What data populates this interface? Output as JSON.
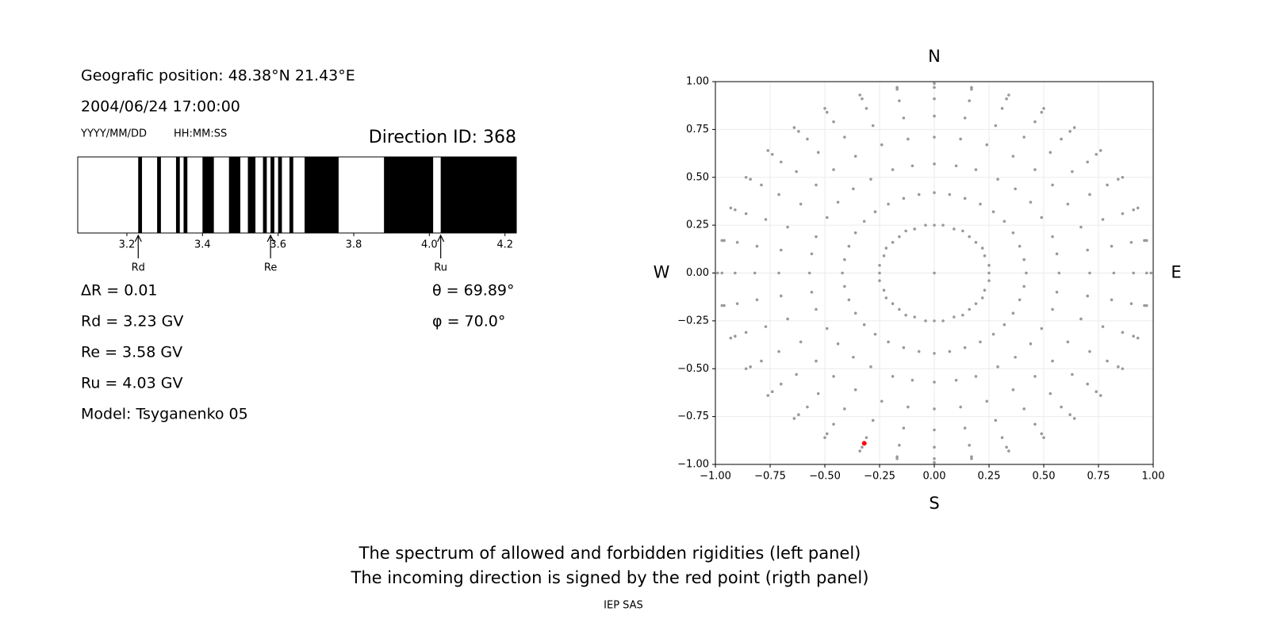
{
  "header": {
    "position": "Geografic position: 48.38°N 21.43°E",
    "datetime": "2004/06/24 17:00:00",
    "date_format": "YYYY/MM/DD",
    "time_format": "HH:MM:SS",
    "direction_id": "Direction ID: 368"
  },
  "parameters": {
    "delta_r": "ΔR = 0.01",
    "rd": "Rd = 3.23 GV",
    "re": "Re = 3.58 GV",
    "ru": "Ru = 4.03 GV",
    "model": "Model: Tsyganenko 05",
    "theta": "θ = 69.89°",
    "phi": "φ = 70.0°"
  },
  "chart_data": [
    {
      "type": "spectrum",
      "xlim": [
        3.07,
        4.23
      ],
      "xticks": [
        3.2,
        3.4,
        3.6,
        3.8,
        {
          "value": 4,
          "label": "4.0"
        },
        4.2
      ],
      "color": "#000000",
      "bands": [
        [
          3.23,
          3.24
        ],
        [
          3.28,
          3.29
        ],
        [
          3.33,
          3.34
        ],
        [
          3.35,
          3.36
        ],
        [
          3.4,
          3.43
        ],
        [
          3.47,
          3.5
        ],
        [
          3.52,
          3.54
        ],
        [
          3.56,
          3.57
        ],
        [
          3.58,
          3.59
        ],
        [
          3.6,
          3.61
        ],
        [
          3.63,
          3.64
        ],
        [
          3.67,
          3.76
        ],
        [
          3.88,
          4.01
        ],
        [
          4.03,
          4.23
        ]
      ],
      "markers": [
        {
          "label": "Rd",
          "value": 3.23
        },
        {
          "label": "Re",
          "value": 3.58
        },
        {
          "label": "Ru",
          "value": 4.03
        }
      ]
    },
    {
      "type": "scatter",
      "xlim": [
        -1,
        1
      ],
      "ylim": [
        -1,
        1
      ],
      "grid": true,
      "xticks": [
        {
          "value": -1,
          "label": "−1.00"
        },
        {
          "value": -0.75,
          "label": "−0.75"
        },
        {
          "value": -0.5,
          "label": "−0.50"
        },
        {
          "value": -0.25,
          "label": "−0.25"
        },
        {
          "value": 0,
          "label": "0.00"
        },
        {
          "value": 0.25,
          "label": "0.25"
        },
        {
          "value": 0.5,
          "label": "0.50"
        },
        {
          "value": 0.75,
          "label": "0.75"
        },
        {
          "value": 1,
          "label": "1.00"
        }
      ],
      "yticks": [
        {
          "value": -1,
          "label": "−1.00"
        },
        {
          "value": -0.75,
          "label": "−0.75"
        },
        {
          "value": -0.5,
          "label": "−0.50"
        },
        {
          "value": -0.25,
          "label": "−0.25"
        },
        {
          "value": 0,
          "label": "0.00"
        },
        {
          "value": 0.25,
          "label": "0.25"
        },
        {
          "value": 0.5,
          "label": "0.50"
        },
        {
          "value": 0.75,
          "label": "0.75"
        },
        {
          "value": 1,
          "label": "1.00"
        }
      ],
      "compass": {
        "north": "N",
        "south": "S",
        "west": "W",
        "east": "E"
      },
      "series": [
        {
          "color": "#999999",
          "x": [
            0,
            0,
            0.04,
            0.09,
            0.13,
            0.16,
            0.19,
            0.22,
            0.23,
            0.25,
            0.25,
            0.25,
            0.23,
            0.22,
            0.19,
            0.16,
            0.13,
            0.09,
            0.04,
            0,
            -0.04,
            -0.09,
            -0.13,
            -0.16,
            -0.19,
            -0.22,
            -0.23,
            -0.25,
            -0.25,
            -0.25,
            -0.23,
            -0.22,
            -0.19,
            -0.16,
            -0.13,
            -0.09,
            -0.04,
            0,
            0.07,
            0.14,
            0.21,
            0.27,
            0.32,
            0.36,
            0.39,
            0.41,
            0.42,
            0.41,
            0.39,
            0.36,
            0.32,
            0.27,
            0.21,
            0.14,
            0.07,
            0,
            -0.07,
            -0.14,
            -0.21,
            -0.27,
            -0.32,
            -0.36,
            -0.39,
            -0.41,
            -0.42,
            -0.41,
            -0.39,
            -0.36,
            -0.32,
            -0.27,
            -0.21,
            -0.14,
            -0.07,
            0,
            0.1,
            0.19,
            0.29,
            0.37,
            0.44,
            0.49,
            0.54,
            0.56,
            0.57,
            0.56,
            0.54,
            0.49,
            0.44,
            0.37,
            0.29,
            0.19,
            0.1,
            0,
            -0.1,
            -0.19,
            -0.29,
            -0.37,
            -0.44,
            -0.49,
            -0.54,
            -0.56,
            -0.57,
            -0.56,
            -0.54,
            -0.49,
            -0.44,
            -0.37,
            -0.29,
            -0.19,
            -0.1,
            0,
            0.12,
            0.24,
            0.36,
            0.46,
            0.54,
            0.61,
            0.67,
            0.7,
            0.71,
            0.7,
            0.67,
            0.61,
            0.54,
            0.46,
            0.36,
            0.24,
            0.12,
            0,
            -0.12,
            -0.24,
            -0.36,
            -0.46,
            -0.54,
            -0.61,
            -0.67,
            -0.7,
            -0.71,
            -0.7,
            -0.67,
            -0.61,
            -0.54,
            -0.46,
            -0.36,
            -0.24,
            -0.12,
            0,
            0.14,
            0.28,
            0.41,
            0.53,
            0.63,
            0.71,
            0.77,
            0.81,
            0.82,
            0.81,
            0.77,
            0.71,
            0.63,
            0.53,
            0.41,
            0.28,
            0.14,
            0,
            -0.14,
            -0.28,
            -0.41,
            -0.53,
            -0.63,
            -0.71,
            -0.77,
            -0.81,
            -0.82,
            -0.81,
            -0.77,
            -0.71,
            -0.63,
            -0.53,
            -0.41,
            -0.28,
            -0.14,
            0,
            0.16,
            0.31,
            0.46,
            0.58,
            0.7,
            0.79,
            0.86,
            0.9,
            0.91,
            0.9,
            0.86,
            0.79,
            0.7,
            0.58,
            0.46,
            0.31,
            0.16,
            0,
            -0.16,
            -0.31,
            -0.46,
            -0.58,
            -0.7,
            -0.79,
            -0.86,
            -0.9,
            -0.91,
            -0.9,
            -0.86,
            -0.79,
            -0.7,
            -0.58,
            -0.46,
            -0.31,
            -0.16,
            0,
            0.17,
            0.33,
            0.49,
            0.62,
            0.74,
            0.84,
            0.91,
            0.96,
            0.97,
            0.96,
            0.91,
            0.84,
            0.74,
            0.62,
            0.49,
            0.33,
            0.17,
            0,
            -0.17,
            -0.33,
            -0.49,
            -0.62,
            -0.74,
            -0.84,
            -0.91,
            -0.96,
            -0.97,
            -0.96,
            -0.91,
            -0.84,
            -0.74,
            -0.62,
            -0.49,
            -0.33,
            -0.17,
            0,
            0.17,
            0.34,
            0.5,
            0.64,
            0.76,
            0.86,
            0.93,
            0.97,
            0.99,
            0.97,
            0.93,
            0.86,
            0.76,
            0.64,
            0.5,
            0.34,
            0.17,
            0,
            -0.17,
            -0.34,
            -0.5,
            -0.64,
            -0.76,
            -0.86,
            -0.93,
            -0.97,
            -0.99,
            -0.97,
            -0.93,
            -0.86,
            -0.76,
            -0.64,
            -0.5,
            -0.34,
            -0.17
          ],
          "y": [
            0,
            0.25,
            0.25,
            0.23,
            0.22,
            0.19,
            0.16,
            0.13,
            0.09,
            0.04,
            0,
            -0.04,
            -0.09,
            -0.13,
            -0.16,
            -0.19,
            -0.22,
            -0.23,
            -0.25,
            -0.25,
            -0.25,
            -0.23,
            -0.22,
            -0.19,
            -0.16,
            -0.13,
            -0.09,
            -0.04,
            0,
            0.04,
            0.09,
            0.13,
            0.16,
            0.19,
            0.22,
            0.23,
            0.25,
            0.42,
            0.41,
            0.39,
            0.36,
            0.32,
            0.27,
            0.21,
            0.14,
            0.07,
            0,
            -0.07,
            -0.14,
            -0.21,
            -0.27,
            -0.32,
            -0.36,
            -0.39,
            -0.41,
            -0.42,
            -0.41,
            -0.39,
            -0.36,
            -0.32,
            -0.27,
            -0.21,
            -0.14,
            -0.07,
            0,
            0.07,
            0.14,
            0.21,
            0.27,
            0.32,
            0.36,
            0.39,
            0.41,
            0.57,
            0.56,
            0.54,
            0.49,
            0.44,
            0.37,
            0.29,
            0.19,
            0.1,
            0,
            -0.1,
            -0.19,
            -0.29,
            -0.37,
            -0.44,
            -0.49,
            -0.54,
            -0.56,
            -0.57,
            -0.56,
            -0.54,
            -0.49,
            -0.44,
            -0.37,
            -0.29,
            -0.19,
            -0.1,
            0,
            0.1,
            0.19,
            0.29,
            0.37,
            0.44,
            0.49,
            0.54,
            0.56,
            0.71,
            0.7,
            0.67,
            0.61,
            0.54,
            0.46,
            0.36,
            0.24,
            0.12,
            0,
            -0.12,
            -0.24,
            -0.36,
            -0.46,
            -0.54,
            -0.61,
            -0.67,
            -0.7,
            -0.71,
            -0.7,
            -0.67,
            -0.61,
            -0.54,
            -0.46,
            -0.36,
            -0.24,
            -0.12,
            0,
            0.12,
            0.24,
            0.36,
            0.46,
            0.54,
            0.61,
            0.67,
            0.7,
            0.82,
            0.81,
            0.77,
            0.71,
            0.63,
            0.53,
            0.41,
            0.28,
            0.14,
            0,
            -0.14,
            -0.28,
            -0.41,
            -0.53,
            -0.63,
            -0.71,
            -0.77,
            -0.81,
            -0.82,
            -0.81,
            -0.77,
            -0.71,
            -0.63,
            -0.53,
            -0.41,
            -0.28,
            -0.14,
            0,
            0.14,
            0.28,
            0.41,
            0.53,
            0.63,
            0.71,
            0.77,
            0.81,
            0.91,
            0.9,
            0.86,
            0.79,
            0.7,
            0.58,
            0.46,
            0.31,
            0.16,
            0,
            -0.16,
            -0.31,
            -0.46,
            -0.58,
            -0.7,
            -0.79,
            -0.86,
            -0.9,
            -0.91,
            -0.9,
            -0.86,
            -0.79,
            -0.7,
            -0.58,
            -0.46,
            -0.31,
            -0.16,
            0,
            0.16,
            0.31,
            0.46,
            0.58,
            0.7,
            0.79,
            0.86,
            0.9,
            0.97,
            0.96,
            0.91,
            0.84,
            0.74,
            0.62,
            0.49,
            0.33,
            0.17,
            0,
            -0.17,
            -0.33,
            -0.49,
            -0.62,
            -0.74,
            -0.84,
            -0.91,
            -0.96,
            -0.97,
            -0.96,
            -0.91,
            -0.84,
            -0.74,
            -0.62,
            -0.49,
            -0.33,
            -0.17,
            0,
            0.17,
            0.33,
            0.49,
            0.62,
            0.74,
            0.84,
            0.91,
            0.96,
            0.99,
            0.97,
            0.93,
            0.86,
            0.76,
            0.64,
            0.5,
            0.34,
            0.17,
            0,
            -0.17,
            -0.34,
            -0.5,
            -0.64,
            -0.76,
            -0.86,
            -0.93,
            -0.97,
            -0.99,
            -0.97,
            -0.93,
            -0.86,
            -0.76,
            -0.64,
            -0.5,
            -0.34,
            -0.17,
            0,
            0.17,
            0.34,
            0.5,
            0.64,
            0.76,
            0.86,
            0.93,
            0.97
          ]
        },
        {
          "color": "#ff0000",
          "x": [
            -0.32
          ],
          "y": [
            -0.89
          ]
        }
      ]
    }
  ],
  "footer": {
    "lines": [
      "The spectrum of allowed and forbidden rigidities (left panel)",
      "The incoming direction is signed by the red point (rigth panel)"
    ],
    "credit": "IEP SAS"
  }
}
